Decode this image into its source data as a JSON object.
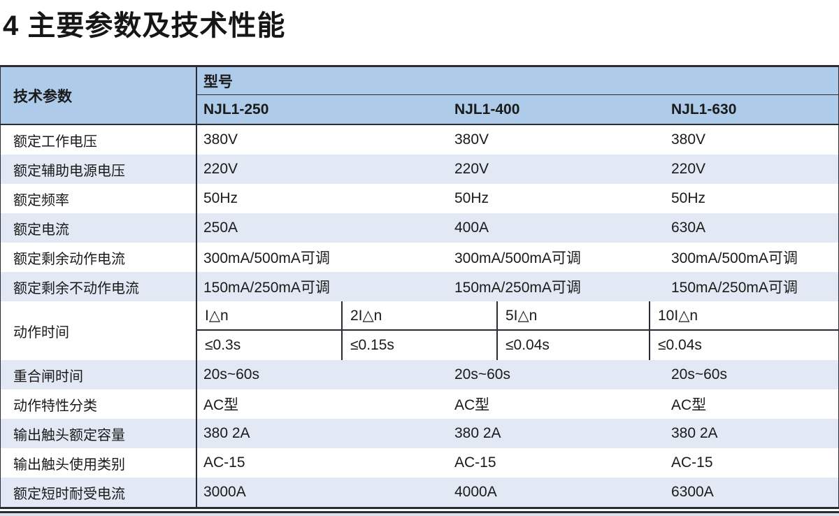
{
  "page": {
    "title": "4 主要参数及技术性能"
  },
  "colors": {
    "header_bg": "#aecbe9",
    "row_alt_bg": "#e2e9f4",
    "border": "#2a2c35",
    "text": "#1a1a1a"
  },
  "table": {
    "header": {
      "param_col": "技术参数",
      "model_group": "型号",
      "models": [
        "NJL1-250",
        "NJL1-400",
        "NJL1-630"
      ]
    },
    "rows_top": [
      {
        "label": "额定工作电压",
        "values": [
          "380V",
          "380V",
          "380V"
        ]
      },
      {
        "label": "额定辅助电源电压",
        "values": [
          "220V",
          "220V",
          "220V"
        ]
      },
      {
        "label": "额定频率",
        "values": [
          "50Hz",
          "50Hz",
          "50Hz"
        ]
      },
      {
        "label": "额定电流",
        "values": [
          "250A",
          "400A",
          "630A"
        ]
      },
      {
        "label": "额定剩余动作电流",
        "values": [
          "300mA/500mA可调",
          "300mA/500mA可调",
          "300mA/500mA可调"
        ]
      },
      {
        "label": "额定剩余不动作电流",
        "values": [
          "150mA/250mA可调",
          "150mA/250mA可调",
          "150mA/250mA可调"
        ]
      }
    ],
    "action_time": {
      "label": "动作时间",
      "cells": [
        {
          "multiple": "I△n",
          "time": "≤0.3s"
        },
        {
          "multiple": "2I△n",
          "time": "≤0.15s"
        },
        {
          "multiple": "5I△n",
          "time": "≤0.04s"
        },
        {
          "multiple": "10I△n",
          "time": "≤0.04s"
        }
      ]
    },
    "rows_bottom": [
      {
        "label": "重合闸时间",
        "values": [
          "20s~60s",
          "20s~60s",
          "20s~60s"
        ]
      },
      {
        "label": "动作特性分类",
        "values": [
          "AC型",
          "AC型",
          "AC型"
        ]
      },
      {
        "label": "输出触头额定容量",
        "values": [
          "380 2A",
          "380 2A",
          "380 2A"
        ]
      },
      {
        "label": "输出触头使用类别",
        "values": [
          "AC-15",
          "AC-15",
          "AC-15"
        ]
      },
      {
        "label": "额定短时耐受电流",
        "values": [
          "3000A",
          "4000A",
          "6300A"
        ]
      }
    ]
  }
}
